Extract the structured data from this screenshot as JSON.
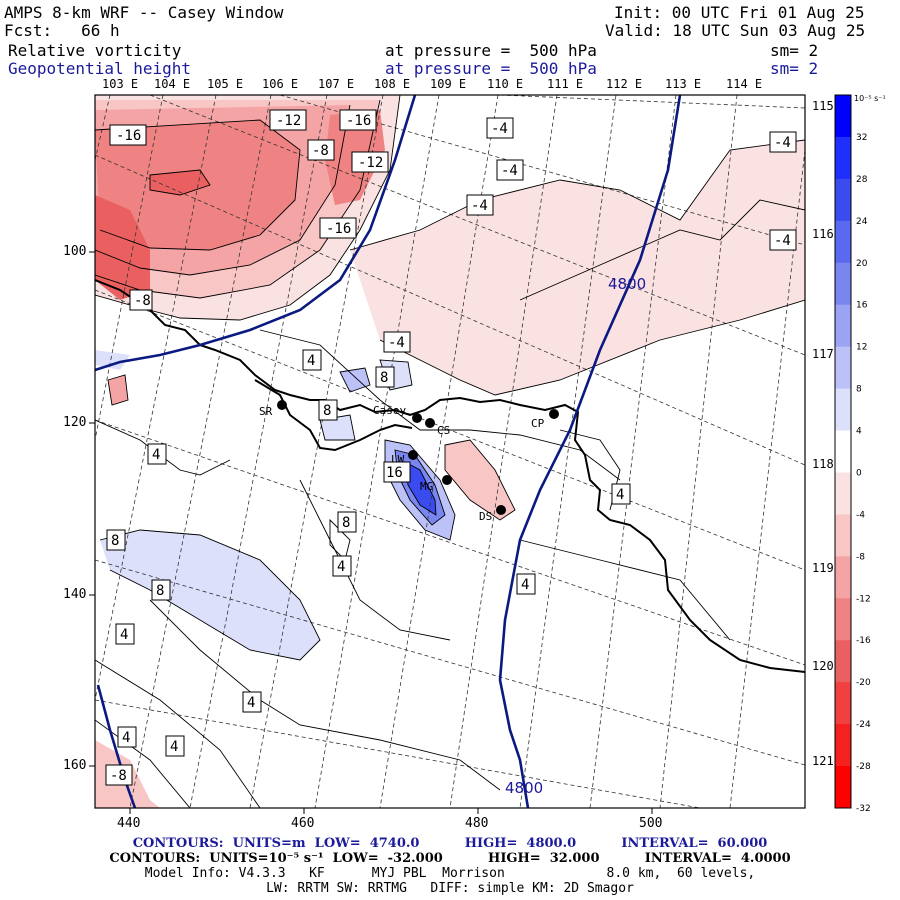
{
  "header": {
    "title": "AMPS 8-km WRF -- Casey Window",
    "forecast": "Fcst:   66 h",
    "init": "Init: 00 UTC Fri 01 Aug 25",
    "valid": "Valid: 18 UTC Sun 03 Aug 25",
    "field1": {
      "name": "Relative vorticity",
      "level": "at pressure =  500 hPa",
      "sm": "sm= 2"
    },
    "field2": {
      "name": "Geopotential height",
      "level": "at pressure =  500 hPa",
      "sm": "sm= 2"
    }
  },
  "axes": {
    "lon_top": [
      "103 E",
      "104 E",
      "105 E",
      "106 E",
      "107 E",
      "108 E",
      "109 E",
      "110 E",
      "111 E",
      "112 E",
      "113 E",
      "114 E"
    ],
    "lat_right": [
      "115 E",
      "116 E",
      "117 E",
      "118 E",
      "119 E",
      "120 E",
      "121 E"
    ],
    "y_ticks": [
      "100",
      "120",
      "140",
      "160"
    ],
    "x_ticks": [
      "440",
      "460",
      "480",
      "500"
    ]
  },
  "colorbar": {
    "unit": "10⁻⁵ s⁻¹",
    "labels": [
      "32",
      "28",
      "24",
      "20",
      "16",
      "12",
      "8",
      "4",
      "0",
      "-4",
      "-8",
      "-12",
      "-16",
      "-20",
      "-24",
      "-28",
      "-32"
    ],
    "colors": [
      "#0000ff",
      "#1f2fff",
      "#3a4cf0",
      "#5a6af0",
      "#7a86f0",
      "#9aa3f4",
      "#bcc2f8",
      "#dde0fb",
      "#ffffff",
      "#fbe2e2",
      "#f9c6c6",
      "#f4a4a4",
      "#ef8282",
      "#ea6060",
      "#f04040",
      "#f52020",
      "#ff0000"
    ]
  },
  "stations": [
    {
      "label": "SR"
    },
    {
      "label": "Casey"
    },
    {
      "label": "CS"
    },
    {
      "label": "LW"
    },
    {
      "label": "MG"
    },
    {
      "label": "DS"
    },
    {
      "label": "CP"
    }
  ],
  "contour_labels": {
    "neg16": "-16",
    "neg12": "-12",
    "neg8": "-8",
    "neg4": "-4",
    "pos4": "4",
    "pos8": "8",
    "pos16": "16",
    "height": "4800"
  },
  "footer": {
    "line1": "CONTOURS:  UNITS=m  LOW=  4740.0          HIGH=  4800.0          INTERVAL=  60.000",
    "line2": "CONTOURS:  UNITS=10⁻⁵ s⁻¹  LOW=  -32.000          HIGH=  32.000          INTERVAL=  4.0000",
    "line3": "Model Info: V4.3.3   KF      MYJ PBL  Morrison             8.0 km,  60 levels,",
    "line4": "LW: RRTM SW: RRTMG   DIFF: simple KM: 2D Smagor"
  }
}
